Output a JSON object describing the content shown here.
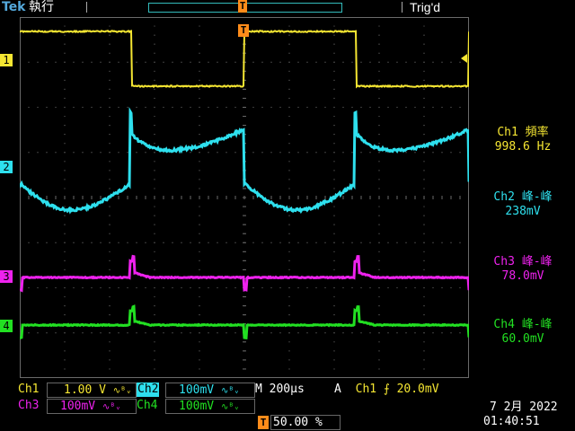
{
  "header": {
    "brand": "Tek",
    "run_state": "執行",
    "trigger_status": "Trig'd"
  },
  "trigger_marker": "T",
  "channel_markers": [
    "1",
    "2",
    "3",
    "4"
  ],
  "measurements": [
    {
      "label": "Ch1 頻率",
      "value": "998.6 Hz"
    },
    {
      "label": "Ch2 峰-峰",
      "value": "238mV"
    },
    {
      "label": "Ch3 峰-峰",
      "value": "78.0mV"
    },
    {
      "label": "Ch4 峰-峰",
      "value": "60.0mV"
    }
  ],
  "settings": {
    "ch1_label": "Ch1",
    "ch1_scale": "1.00 V",
    "ch2_label": "Ch2",
    "ch2_scale": "100mV",
    "ch3_label": "Ch3",
    "ch3_scale": "100mV",
    "ch4_label": "Ch4",
    "ch4_scale": "100mV",
    "bw_glyph": "∿ᴮᵥ",
    "timebase_prefix": "M",
    "timebase": "200µs",
    "trigger_mode": "A",
    "trigger_source": "Ch1",
    "trigger_slope": "⨍",
    "trigger_level": "20.0mV",
    "trigger_position_marker": "T",
    "trigger_position": "50.00 %"
  },
  "datetime": {
    "date": "7 2月  2022",
    "time": "01:40:51"
  },
  "colors": {
    "ch1": "#f5e632",
    "ch2": "#2ee0ee",
    "ch3": "#ee22ee",
    "ch4": "#22e022",
    "trigger": "#ff8c1a",
    "grid": "#6a6a6a"
  }
}
